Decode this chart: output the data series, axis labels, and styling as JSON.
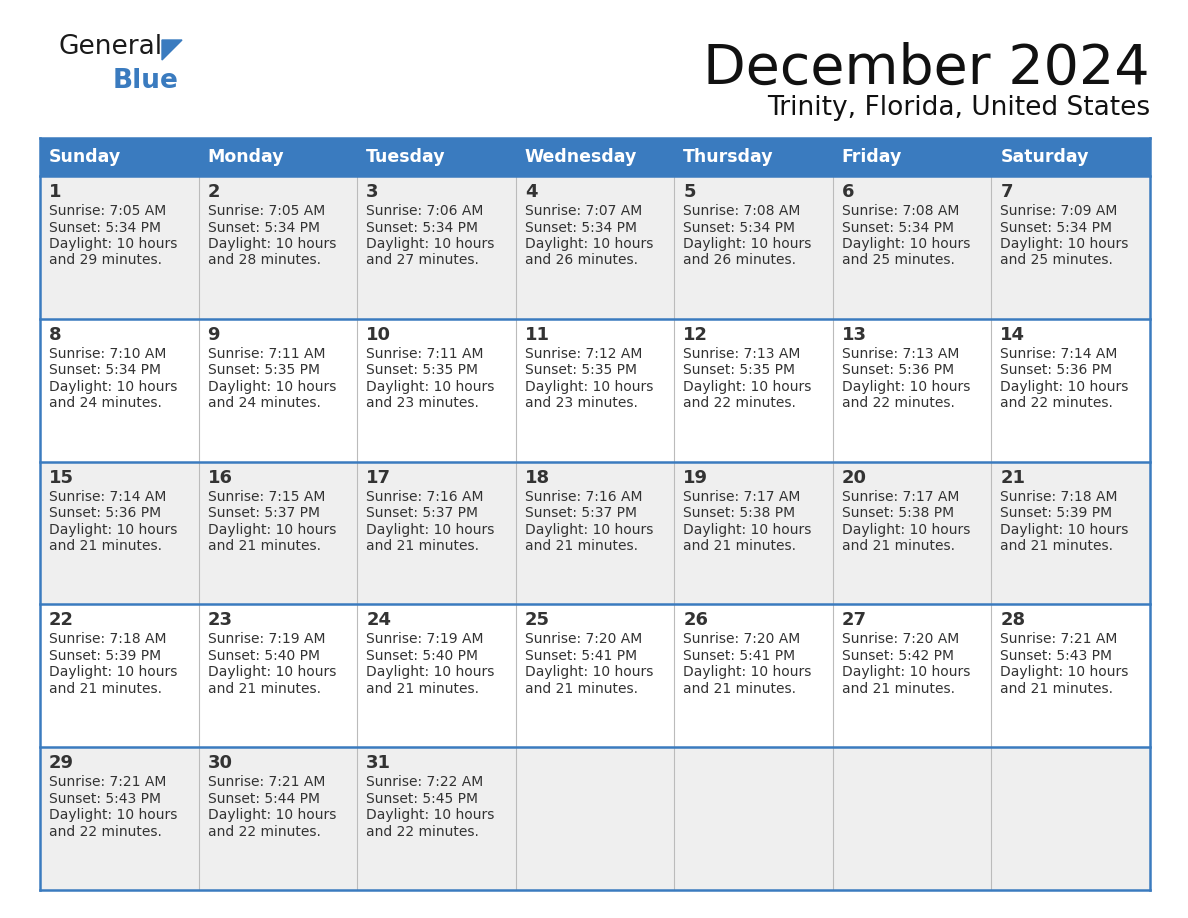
{
  "title": "December 2024",
  "subtitle": "Trinity, Florida, United States",
  "header_color": "#3a7bbf",
  "header_text_color": "#FFFFFF",
  "cell_bg_even": "#EFEFEF",
  "cell_bg_odd": "#FFFFFF",
  "border_color": "#3a7bbf",
  "cell_border_color": "#3a7bbf",
  "text_color": "#333333",
  "days_of_week": [
    "Sunday",
    "Monday",
    "Tuesday",
    "Wednesday",
    "Thursday",
    "Friday",
    "Saturday"
  ],
  "weeks": [
    [
      {
        "day": 1,
        "sunrise": "7:05 AM",
        "sunset": "5:34 PM",
        "daylight_minutes": "29 minutes."
      },
      {
        "day": 2,
        "sunrise": "7:05 AM",
        "sunset": "5:34 PM",
        "daylight_minutes": "28 minutes."
      },
      {
        "day": 3,
        "sunrise": "7:06 AM",
        "sunset": "5:34 PM",
        "daylight_minutes": "27 minutes."
      },
      {
        "day": 4,
        "sunrise": "7:07 AM",
        "sunset": "5:34 PM",
        "daylight_minutes": "26 minutes."
      },
      {
        "day": 5,
        "sunrise": "7:08 AM",
        "sunset": "5:34 PM",
        "daylight_minutes": "26 minutes."
      },
      {
        "day": 6,
        "sunrise": "7:08 AM",
        "sunset": "5:34 PM",
        "daylight_minutes": "25 minutes."
      },
      {
        "day": 7,
        "sunrise": "7:09 AM",
        "sunset": "5:34 PM",
        "daylight_minutes": "25 minutes."
      }
    ],
    [
      {
        "day": 8,
        "sunrise": "7:10 AM",
        "sunset": "5:34 PM",
        "daylight_minutes": "24 minutes."
      },
      {
        "day": 9,
        "sunrise": "7:11 AM",
        "sunset": "5:35 PM",
        "daylight_minutes": "24 minutes."
      },
      {
        "day": 10,
        "sunrise": "7:11 AM",
        "sunset": "5:35 PM",
        "daylight_minutes": "23 minutes."
      },
      {
        "day": 11,
        "sunrise": "7:12 AM",
        "sunset": "5:35 PM",
        "daylight_minutes": "23 minutes."
      },
      {
        "day": 12,
        "sunrise": "7:13 AM",
        "sunset": "5:35 PM",
        "daylight_minutes": "22 minutes."
      },
      {
        "day": 13,
        "sunrise": "7:13 AM",
        "sunset": "5:36 PM",
        "daylight_minutes": "22 minutes."
      },
      {
        "day": 14,
        "sunrise": "7:14 AM",
        "sunset": "5:36 PM",
        "daylight_minutes": "22 minutes."
      }
    ],
    [
      {
        "day": 15,
        "sunrise": "7:14 AM",
        "sunset": "5:36 PM",
        "daylight_minutes": "21 minutes."
      },
      {
        "day": 16,
        "sunrise": "7:15 AM",
        "sunset": "5:37 PM",
        "daylight_minutes": "21 minutes."
      },
      {
        "day": 17,
        "sunrise": "7:16 AM",
        "sunset": "5:37 PM",
        "daylight_minutes": "21 minutes."
      },
      {
        "day": 18,
        "sunrise": "7:16 AM",
        "sunset": "5:37 PM",
        "daylight_minutes": "21 minutes."
      },
      {
        "day": 19,
        "sunrise": "7:17 AM",
        "sunset": "5:38 PM",
        "daylight_minutes": "21 minutes."
      },
      {
        "day": 20,
        "sunrise": "7:17 AM",
        "sunset": "5:38 PM",
        "daylight_minutes": "21 minutes."
      },
      {
        "day": 21,
        "sunrise": "7:18 AM",
        "sunset": "5:39 PM",
        "daylight_minutes": "21 minutes."
      }
    ],
    [
      {
        "day": 22,
        "sunrise": "7:18 AM",
        "sunset": "5:39 PM",
        "daylight_minutes": "21 minutes."
      },
      {
        "day": 23,
        "sunrise": "7:19 AM",
        "sunset": "5:40 PM",
        "daylight_minutes": "21 minutes."
      },
      {
        "day": 24,
        "sunrise": "7:19 AM",
        "sunset": "5:40 PM",
        "daylight_minutes": "21 minutes."
      },
      {
        "day": 25,
        "sunrise": "7:20 AM",
        "sunset": "5:41 PM",
        "daylight_minutes": "21 minutes."
      },
      {
        "day": 26,
        "sunrise": "7:20 AM",
        "sunset": "5:41 PM",
        "daylight_minutes": "21 minutes."
      },
      {
        "day": 27,
        "sunrise": "7:20 AM",
        "sunset": "5:42 PM",
        "daylight_minutes": "21 minutes."
      },
      {
        "day": 28,
        "sunrise": "7:21 AM",
        "sunset": "5:43 PM",
        "daylight_minutes": "21 minutes."
      }
    ],
    [
      {
        "day": 29,
        "sunrise": "7:21 AM",
        "sunset": "5:43 PM",
        "daylight_minutes": "22 minutes."
      },
      {
        "day": 30,
        "sunrise": "7:21 AM",
        "sunset": "5:44 PM",
        "daylight_minutes": "22 minutes."
      },
      {
        "day": 31,
        "sunrise": "7:22 AM",
        "sunset": "5:45 PM",
        "daylight_minutes": "22 minutes."
      },
      null,
      null,
      null,
      null
    ]
  ]
}
